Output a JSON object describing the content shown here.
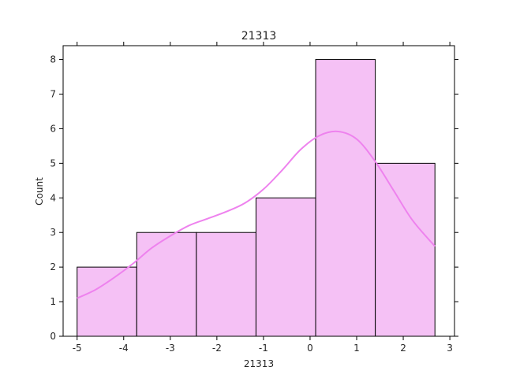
{
  "chart_data": {
    "type": "bar",
    "title": "21313",
    "xlabel": "21313",
    "ylabel": "Count",
    "bins": [
      {
        "start": -5.0,
        "end": -3.72,
        "count": 2
      },
      {
        "start": -3.72,
        "end": -2.44,
        "count": 3
      },
      {
        "start": -2.44,
        "end": -1.16,
        "count": 3
      },
      {
        "start": -1.16,
        "end": 0.12,
        "count": 4
      },
      {
        "start": 0.12,
        "end": 1.4,
        "count": 8
      },
      {
        "start": 1.4,
        "end": 2.68,
        "count": 5
      }
    ],
    "kde": {
      "x": [
        -5.0,
        -4.6,
        -4.2,
        -3.8,
        -3.4,
        -3.0,
        -2.6,
        -2.2,
        -1.8,
        -1.4,
        -1.0,
        -0.6,
        -0.2,
        0.2,
        0.6,
        1.0,
        1.4,
        1.8,
        2.2,
        2.68
      ],
      "y": [
        1.1,
        1.35,
        1.7,
        2.1,
        2.55,
        2.9,
        3.2,
        3.4,
        3.6,
        3.85,
        4.25,
        4.8,
        5.4,
        5.8,
        5.92,
        5.7,
        5.05,
        4.2,
        3.35,
        2.6
      ]
    },
    "xlim": [
      -5.3,
      3.1
    ],
    "ylim": [
      0,
      8.4
    ],
    "xticks": [
      -5,
      -4,
      -3,
      -2,
      -1,
      0,
      1,
      2,
      3
    ],
    "yticks": [
      0,
      1,
      2,
      3,
      4,
      5,
      6,
      7,
      8
    ],
    "grid": false,
    "colors": {
      "bar_fill": "#f5c1f5",
      "bar_edge": "#000000",
      "kde_line": "#ee82ee"
    }
  }
}
